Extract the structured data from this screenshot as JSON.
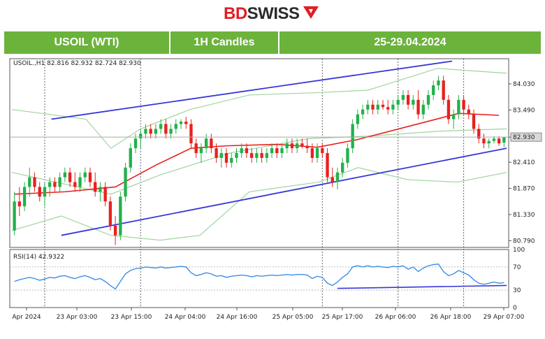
{
  "brand": {
    "name_a": "BD",
    "name_b": "SWISS"
  },
  "header": {
    "instrument": "USOIL (WTI)",
    "timeframe": "1H Candles",
    "dates": "25-29.04.2024"
  },
  "colors": {
    "bull": "#22b14c",
    "bear": "#e8211d",
    "ma": "#e8211d",
    "bands": "#9fd49f",
    "channel": "#3636d8",
    "rsi": "#3b8ee6",
    "header_bg": "#6bb33b"
  },
  "chart_data": {
    "type": "candlestick",
    "info_line": "USOIL.,H1  82.816 82.932 82.724 82.930",
    "price_ticks": [
      "84.030",
      "83.490",
      "82.930",
      "82.410",
      "81.870",
      "81.330",
      "80.790"
    ],
    "current_price": "82.930",
    "ylim": [
      80.65,
      84.55
    ],
    "x_labels": [
      "Apr 2024",
      "23 Apr 03:00",
      "23 Apr 15:00",
      "24 Apr 04:00",
      "24 Apr 16:00",
      "25 Apr 05:00",
      "25 Apr 17:00",
      "26 Apr 06:00",
      "26 Apr 18:00",
      "29 Apr 07:00"
    ],
    "candles": [
      [
        81.0,
        81.8,
        80.9,
        81.6
      ],
      [
        81.6,
        81.9,
        81.3,
        81.5
      ],
      [
        81.5,
        82.0,
        81.4,
        81.9
      ],
      [
        81.9,
        82.3,
        81.7,
        82.1
      ],
      [
        82.1,
        82.2,
        81.8,
        81.9
      ],
      [
        81.9,
        82.0,
        81.6,
        81.7
      ],
      [
        81.7,
        82.0,
        81.5,
        81.9
      ],
      [
        81.9,
        82.1,
        81.7,
        82.0
      ],
      [
        82.0,
        82.1,
        81.8,
        81.9
      ],
      [
        81.9,
        82.2,
        81.8,
        82.1
      ],
      [
        82.1,
        82.3,
        82.0,
        82.2
      ],
      [
        82.2,
        82.3,
        81.9,
        82.0
      ],
      [
        82.0,
        82.2,
        81.8,
        81.9
      ],
      [
        81.9,
        82.2,
        81.8,
        82.1
      ],
      [
        82.1,
        82.3,
        82.0,
        82.2
      ],
      [
        82.2,
        82.3,
        81.9,
        82.0
      ],
      [
        82.0,
        82.2,
        81.7,
        81.8
      ],
      [
        81.8,
        82.0,
        81.6,
        81.9
      ],
      [
        81.9,
        82.0,
        81.5,
        81.6
      ],
      [
        81.6,
        81.7,
        81.0,
        81.1
      ],
      [
        81.1,
        81.3,
        80.7,
        80.9
      ],
      [
        80.9,
        81.8,
        80.8,
        81.7
      ],
      [
        81.7,
        82.4,
        81.6,
        82.3
      ],
      [
        82.3,
        82.8,
        82.2,
        82.7
      ],
      [
        82.7,
        83.0,
        82.6,
        82.9
      ],
      [
        82.9,
        83.1,
        82.7,
        83.0
      ],
      [
        83.0,
        83.2,
        82.9,
        83.1
      ],
      [
        83.1,
        83.2,
        82.9,
        83.0
      ],
      [
        83.0,
        83.2,
        82.9,
        83.1
      ],
      [
        83.1,
        83.3,
        83.0,
        83.2
      ],
      [
        83.2,
        83.3,
        82.9,
        83.0
      ],
      [
        83.0,
        83.2,
        82.9,
        83.1
      ],
      [
        83.1,
        83.3,
        83.0,
        83.2
      ],
      [
        83.2,
        83.3,
        83.1,
        83.25
      ],
      [
        83.25,
        83.35,
        83.1,
        83.2
      ],
      [
        83.2,
        83.3,
        82.7,
        82.8
      ],
      [
        82.8,
        82.9,
        82.5,
        82.6
      ],
      [
        82.6,
        82.8,
        82.4,
        82.7
      ],
      [
        82.7,
        83.0,
        82.6,
        82.9
      ],
      [
        82.9,
        83.0,
        82.6,
        82.7
      ],
      [
        82.7,
        82.8,
        82.4,
        82.5
      ],
      [
        82.5,
        82.7,
        82.3,
        82.6
      ],
      [
        82.6,
        82.7,
        82.3,
        82.4
      ],
      [
        82.4,
        82.6,
        82.3,
        82.5
      ],
      [
        82.5,
        82.7,
        82.4,
        82.6
      ],
      [
        82.6,
        82.8,
        82.5,
        82.7
      ],
      [
        82.7,
        82.8,
        82.5,
        82.6
      ],
      [
        82.6,
        82.7,
        82.4,
        82.5
      ],
      [
        82.5,
        82.7,
        82.4,
        82.6
      ],
      [
        82.6,
        82.7,
        82.4,
        82.5
      ],
      [
        82.5,
        82.7,
        82.4,
        82.6
      ],
      [
        82.6,
        82.8,
        82.5,
        82.7
      ],
      [
        82.7,
        82.8,
        82.5,
        82.6
      ],
      [
        82.6,
        82.8,
        82.5,
        82.7
      ],
      [
        82.7,
        82.9,
        82.6,
        82.8
      ],
      [
        82.8,
        82.9,
        82.6,
        82.7
      ],
      [
        82.7,
        82.9,
        82.6,
        82.8
      ],
      [
        82.8,
        82.9,
        82.7,
        82.75
      ],
      [
        82.75,
        82.9,
        82.6,
        82.7
      ],
      [
        82.7,
        82.8,
        82.4,
        82.5
      ],
      [
        82.5,
        82.8,
        82.4,
        82.7
      ],
      [
        82.7,
        82.8,
        82.5,
        82.6
      ],
      [
        82.6,
        82.7,
        82.0,
        82.1
      ],
      [
        82.1,
        82.3,
        81.9,
        82.0
      ],
      [
        82.0,
        82.3,
        81.85,
        82.2
      ],
      [
        82.2,
        82.5,
        82.1,
        82.4
      ],
      [
        82.4,
        82.8,
        82.3,
        82.7
      ],
      [
        82.7,
        83.3,
        82.6,
        83.2
      ],
      [
        83.2,
        83.5,
        83.1,
        83.4
      ],
      [
        83.4,
        83.6,
        83.3,
        83.5
      ],
      [
        83.5,
        83.7,
        83.4,
        83.6
      ],
      [
        83.6,
        83.7,
        83.4,
        83.5
      ],
      [
        83.5,
        83.7,
        83.4,
        83.6
      ],
      [
        83.6,
        83.7,
        83.5,
        83.55
      ],
      [
        83.55,
        83.7,
        83.4,
        83.5
      ],
      [
        83.5,
        83.7,
        83.4,
        83.6
      ],
      [
        83.6,
        83.8,
        83.5,
        83.7
      ],
      [
        83.7,
        83.9,
        83.6,
        83.8
      ],
      [
        83.8,
        83.9,
        83.5,
        83.6
      ],
      [
        83.6,
        83.8,
        83.5,
        83.7
      ],
      [
        83.7,
        83.9,
        83.3,
        83.4
      ],
      [
        83.4,
        83.7,
        83.3,
        83.6
      ],
      [
        83.6,
        83.9,
        83.5,
        83.8
      ],
      [
        83.8,
        84.1,
        83.7,
        84.0
      ],
      [
        84.0,
        84.2,
        83.9,
        84.1
      ],
      [
        84.1,
        84.2,
        83.6,
        83.7
      ],
      [
        83.7,
        83.8,
        83.2,
        83.3
      ],
      [
        83.3,
        83.5,
        83.1,
        83.4
      ],
      [
        83.4,
        83.8,
        83.3,
        83.7
      ],
      [
        83.7,
        83.8,
        83.4,
        83.5
      ],
      [
        83.5,
        83.6,
        83.3,
        83.4
      ],
      [
        83.4,
        83.5,
        83.0,
        83.1
      ],
      [
        83.1,
        83.2,
        82.8,
        82.9
      ],
      [
        82.9,
        83.0,
        82.7,
        82.8
      ],
      [
        82.8,
        82.9,
        82.7,
        82.85
      ],
      [
        82.85,
        82.95,
        82.8,
        82.9
      ],
      [
        82.9,
        82.95,
        82.75,
        82.8
      ],
      [
        82.816,
        82.932,
        82.724,
        82.93
      ]
    ],
    "moving_average": [
      [
        0,
        81.75
      ],
      [
        10,
        81.8
      ],
      [
        20,
        81.9
      ],
      [
        28,
        82.35
      ],
      [
        35,
        82.7
      ],
      [
        42,
        82.75
      ],
      [
        52,
        82.78
      ],
      [
        60,
        82.72
      ],
      [
        68,
        82.88
      ],
      [
        78,
        83.15
      ],
      [
        88,
        83.42
      ],
      [
        96,
        83.38
      ]
    ],
    "band_upper": [
      [
        0,
        83.5
      ],
      [
        15,
        83.3
      ],
      [
        20,
        82.7
      ],
      [
        26,
        83.1
      ],
      [
        36,
        83.5
      ],
      [
        48,
        83.8
      ],
      [
        62,
        83.85
      ],
      [
        72,
        83.9
      ],
      [
        86,
        84.35
      ],
      [
        100,
        84.25
      ]
    ],
    "band_lower": [
      [
        0,
        81.0
      ],
      [
        10,
        81.3
      ],
      [
        20,
        80.9
      ],
      [
        30,
        80.8
      ],
      [
        38,
        80.9
      ],
      [
        48,
        81.8
      ],
      [
        62,
        82.0
      ],
      [
        70,
        82.3
      ],
      [
        80,
        82.05
      ],
      [
        90,
        82.0
      ],
      [
        100,
        82.2
      ]
    ],
    "band_mid": [
      [
        0,
        82.2
      ],
      [
        20,
        81.75
      ],
      [
        30,
        82.15
      ],
      [
        44,
        82.6
      ],
      [
        60,
        82.9
      ],
      [
        72,
        82.95
      ],
      [
        86,
        83.05
      ],
      [
        100,
        83.1
      ]
    ],
    "channel_upper": [
      [
        8,
        83.3
      ],
      [
        89,
        84.5
      ]
    ],
    "channel_lower": [
      [
        10,
        80.9
      ],
      [
        100,
        82.7
      ]
    ],
    "rsi": {
      "label": "RSI(14) 42.9322",
      "ticks": [
        "100",
        "70",
        "30",
        "0"
      ],
      "ylim": [
        0,
        100
      ],
      "values": [
        45,
        48,
        50,
        52,
        50,
        47,
        49,
        52,
        51,
        54,
        55,
        52,
        50,
        53,
        55,
        52,
        48,
        50,
        45,
        38,
        32,
        45,
        58,
        64,
        67,
        68,
        70,
        69,
        68,
        70,
        68,
        69,
        70,
        71,
        70,
        60,
        55,
        57,
        60,
        58,
        54,
        55,
        52,
        54,
        55,
        56,
        55,
        53,
        55,
        54,
        55,
        56,
        55,
        56,
        57,
        56,
        57,
        57,
        56,
        50,
        54,
        52,
        42,
        38,
        44,
        52,
        58,
        70,
        72,
        70,
        72,
        70,
        71,
        70,
        69,
        71,
        70,
        72,
        66,
        70,
        62,
        68,
        72,
        74,
        75,
        62,
        55,
        58,
        64,
        60,
        56,
        48,
        42,
        40,
        42,
        44,
        42,
        43
      ],
      "support_line": [
        [
          64,
          33
        ],
        [
          100,
          38
        ]
      ]
    }
  }
}
